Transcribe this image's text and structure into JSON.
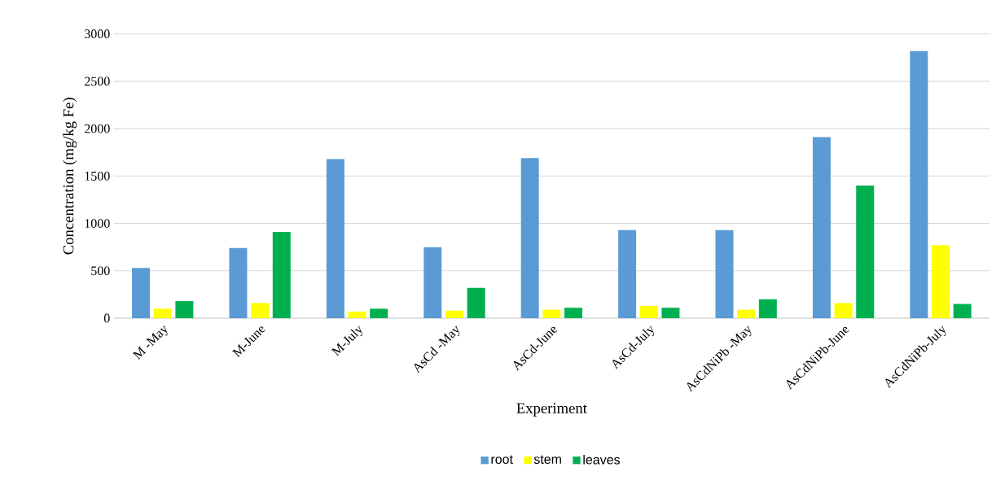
{
  "chart_data": {
    "type": "bar",
    "xlabel": "Experiment",
    "ylabel": "Concentration (mg/kg Fe)",
    "categories": [
      "M -May",
      "M-June",
      "M-July",
      "AsCd -May",
      "AsCd-June",
      "AsCd-July",
      "AsCdNiPb -May",
      "AsCdNiPb-June",
      "AsCdNiPb-July"
    ],
    "series": [
      {
        "name": "root",
        "color": "#5b9bd5",
        "values": [
          530,
          740,
          1680,
          750,
          1690,
          930,
          930,
          1910,
          2820
        ]
      },
      {
        "name": "stem",
        "color": "#ffff00",
        "values": [
          100,
          160,
          70,
          80,
          90,
          130,
          90,
          160,
          770
        ]
      },
      {
        "name": "leaves",
        "color": "#00b050",
        "values": [
          180,
          910,
          100,
          320,
          110,
          110,
          200,
          1400,
          150
        ]
      }
    ],
    "ylim": [
      0,
      3000
    ],
    "yticks": [
      0,
      500,
      1000,
      1500,
      2000,
      2500,
      3000
    ],
    "grid": "y",
    "legend": "bottom"
  }
}
